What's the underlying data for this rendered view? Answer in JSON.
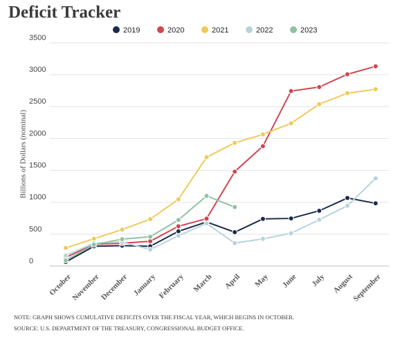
{
  "chart_data": {
    "type": "line",
    "title": "Deficit Tracker",
    "y_axis_label": "Billions of Dollars (nominal)",
    "categories": [
      "October",
      "November",
      "December",
      "January",
      "February",
      "March",
      "April",
      "May",
      "June",
      "July",
      "August",
      "September"
    ],
    "series": [
      {
        "name": "2019",
        "color": "#1b2a4a",
        "values": [
          63,
          310,
          320,
          310,
          544,
          691,
          531,
          739,
          747,
          867,
          1067,
          984
        ]
      },
      {
        "name": "2020",
        "color": "#d0464f",
        "values": [
          134,
          342,
          357,
          389,
          624,
          743,
          1481,
          1880,
          2744,
          2807,
          3007,
          3132
        ]
      },
      {
        "name": "2021",
        "color": "#f0c95a",
        "values": [
          284,
          429,
          572,
          735,
          1047,
          1706,
          1932,
          2064,
          2238,
          2540,
          2711,
          2772
        ]
      },
      {
        "name": "2022",
        "color": "#b7d3dc",
        "values": [
          165,
          357,
          377,
          259,
          475,
          668,
          360,
          426,
          515,
          726,
          946,
          1375
        ]
      },
      {
        "name": "2023",
        "color": "#8fc3a3",
        "values": [
          88,
          336,
          421,
          460,
          723,
          1100,
          925,
          null,
          null,
          null,
          null,
          null
        ]
      }
    ],
    "ylim": [
      0,
      3500
    ],
    "yticks": [
      0,
      500,
      1000,
      1500,
      2000,
      2500,
      3000,
      3500
    ],
    "grid": true,
    "notes": [
      "NOTE: GRAPH SHOWS CUMULATIVE DEFICITS OVER THE FISCAL YEAR, WHICH BEGINS IN OCTOBER.",
      "SOURCE: U.S. DEPARTMENT OF THE TREASURY, CONGRESSIONAL BUDGET OFFICE."
    ]
  }
}
